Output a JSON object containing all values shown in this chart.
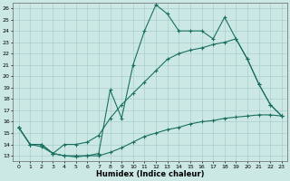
{
  "bg_color": "#cce8e5",
  "line_color": "#1a7060",
  "grid_color": "#aacfcc",
  "xlabel": "Humidex (Indice chaleur)",
  "xlim": [
    -0.5,
    23.5
  ],
  "ylim": [
    12.5,
    26.5
  ],
  "yticks": [
    13,
    14,
    15,
    16,
    17,
    18,
    19,
    20,
    21,
    22,
    23,
    24,
    25,
    26
  ],
  "xticks": [
    0,
    1,
    2,
    3,
    4,
    5,
    6,
    7,
    8,
    9,
    10,
    11,
    12,
    13,
    14,
    15,
    16,
    17,
    18,
    19,
    20,
    21,
    22,
    23
  ],
  "curve_top_x": [
    0,
    1,
    2,
    3,
    4,
    5,
    6,
    7,
    8,
    9,
    10,
    11,
    12,
    13,
    14,
    15,
    16,
    17,
    18,
    19,
    20,
    21,
    22,
    23
  ],
  "curve_top_y": [
    15.5,
    14.0,
    14.0,
    13.2,
    13.0,
    13.0,
    13.0,
    13.2,
    18.8,
    16.3,
    21.0,
    24.0,
    26.3,
    25.5,
    24.0,
    24.0,
    24.0,
    23.3,
    25.2,
    23.3,
    21.5,
    19.3,
    17.5,
    16.5
  ],
  "curve_mid_x": [
    0,
    1,
    2,
    3,
    4,
    5,
    6,
    7,
    8,
    9,
    10,
    11,
    12,
    13,
    14,
    15,
    16,
    17,
    18,
    19,
    20,
    21,
    22,
    23
  ],
  "curve_mid_y": [
    15.5,
    14.0,
    14.0,
    13.2,
    14.0,
    14.0,
    14.2,
    14.8,
    16.3,
    17.5,
    18.5,
    19.5,
    20.5,
    21.5,
    22.0,
    22.3,
    22.5,
    22.8,
    23.0,
    23.3,
    21.5,
    19.3,
    17.5,
    16.5
  ],
  "curve_bot_x": [
    0,
    1,
    2,
    3,
    4,
    5,
    6,
    7,
    8,
    9,
    10,
    11,
    12,
    13,
    14,
    15,
    16,
    17,
    18,
    19,
    20,
    21,
    22,
    23
  ],
  "curve_bot_y": [
    15.5,
    14.0,
    13.8,
    13.2,
    13.0,
    12.9,
    13.0,
    13.0,
    13.3,
    13.7,
    14.2,
    14.7,
    15.0,
    15.3,
    15.5,
    15.8,
    16.0,
    16.1,
    16.3,
    16.4,
    16.5,
    16.6,
    16.6,
    16.5
  ]
}
